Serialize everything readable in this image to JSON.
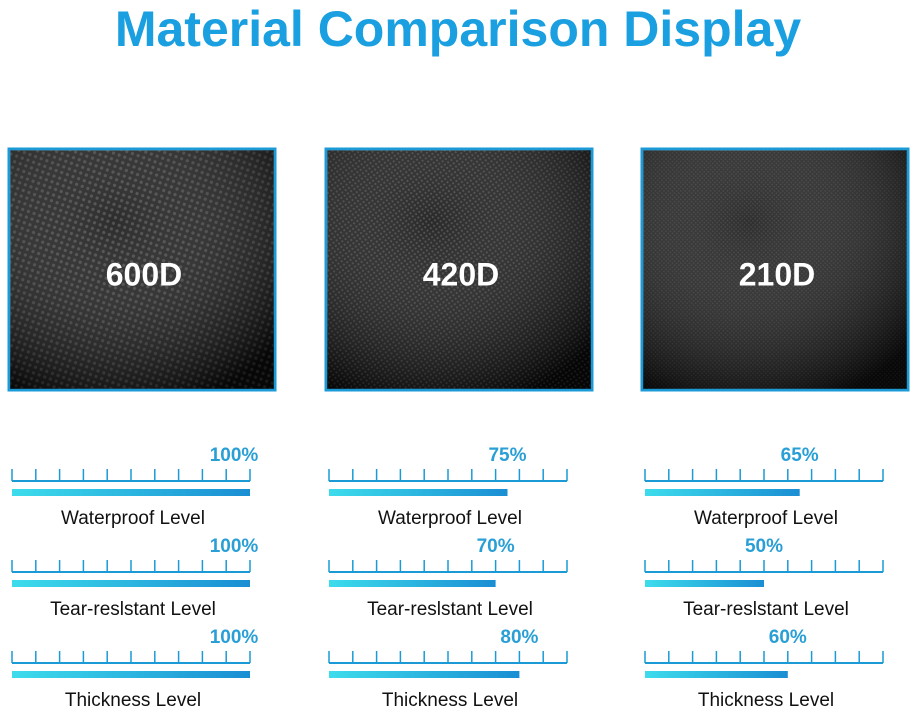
{
  "title": "Material Comparison Display",
  "xlim": [
    0,
    100
  ],
  "panels": [
    {
      "label": "600D",
      "metrics": [
        {
          "name": "Waterproof Level",
          "value": 100,
          "value_label": "100%"
        },
        {
          "name": "Tear-reslstant Level",
          "value": 100,
          "value_label": "100%"
        },
        {
          "name": "Thickness Level",
          "value": 100,
          "value_label": "100%"
        }
      ]
    },
    {
      "label": "420D",
      "metrics": [
        {
          "name": "Waterproof Level",
          "value": 75,
          "value_label": "75%"
        },
        {
          "name": "Tear-reslstant Level",
          "value": 70,
          "value_label": "70%"
        },
        {
          "name": "Thickness Level",
          "value": 80,
          "value_label": "80%"
        }
      ]
    },
    {
      "label": "210D",
      "metrics": [
        {
          "name": "Waterproof Level",
          "value": 65,
          "value_label": "65%"
        },
        {
          "name": "Tear-reslstant Level",
          "value": 50,
          "value_label": "50%"
        },
        {
          "name": "Thickness Level",
          "value": 60,
          "value_label": "60%"
        }
      ]
    }
  ]
}
